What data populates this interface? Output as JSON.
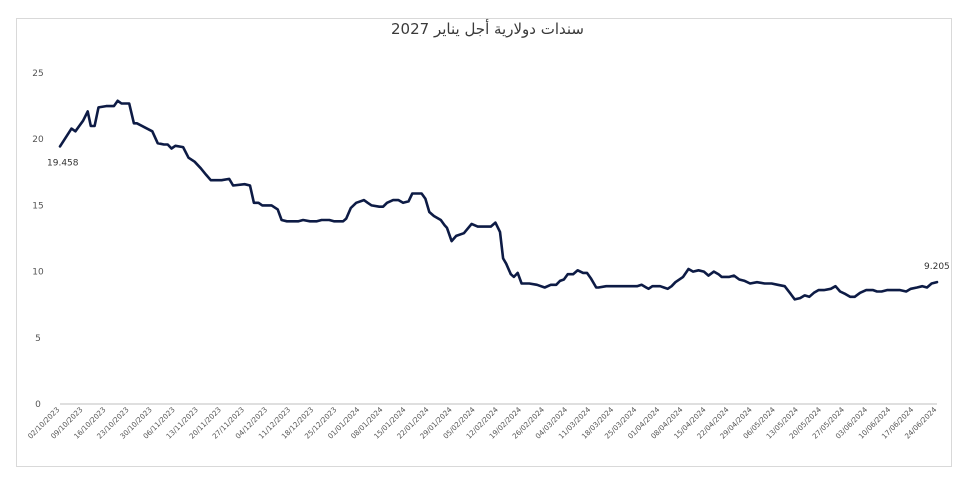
{
  "chart_data": {
    "type": "line",
    "title": "سندات دولارية أجل يناير 2027",
    "xlabel": "",
    "ylabel": "",
    "ylim": [
      0,
      25
    ],
    "yticks": [
      0,
      5,
      10,
      15,
      20,
      25
    ],
    "grid": false,
    "x_tick_labels": [
      "02/10/2023",
      "09/10/2023",
      "16/10/2023",
      "23/10/2023",
      "30/10/2023",
      "06/11/2023",
      "13/11/2023",
      "20/11/2023",
      "27/11/2023",
      "04/12/2023",
      "11/12/2023",
      "18/12/2023",
      "25/12/2023",
      "01/01/2024",
      "08/01/2024",
      "15/01/2024",
      "22/01/2024",
      "29/01/2024",
      "05/02/2024",
      "12/02/2024",
      "19/02/2024",
      "26/02/2024",
      "04/03/2024",
      "11/03/2024",
      "18/03/2024",
      "25/03/2024",
      "01/04/2024",
      "08/04/2024",
      "15/04/2024",
      "22/04/2024",
      "29/04/2024",
      "06/05/2024",
      "13/05/2024",
      "20/05/2024",
      "27/05/2024",
      "03/06/2024",
      "10/06/2024",
      "17/06/2024",
      "24/06/2024"
    ],
    "series": [
      {
        "values": [
          [
            0,
            19.458
          ],
          [
            1.5,
            20.8
          ],
          [
            2,
            20.6
          ],
          [
            3,
            21.4
          ],
          [
            3.6,
            22.1
          ],
          [
            4,
            21.0
          ],
          [
            4.5,
            21.0
          ],
          [
            5,
            22.4
          ],
          [
            6,
            22.5
          ],
          [
            7,
            22.5
          ],
          [
            7.5,
            22.9
          ],
          [
            8,
            22.7
          ],
          [
            9,
            22.7
          ],
          [
            9.6,
            21.2
          ],
          [
            10,
            21.2
          ],
          [
            11,
            20.9
          ],
          [
            12,
            20.6
          ],
          [
            12.7,
            19.7
          ],
          [
            13.5,
            19.6
          ],
          [
            14,
            19.6
          ],
          [
            14.5,
            19.3
          ],
          [
            15,
            19.5
          ],
          [
            16,
            19.4
          ],
          [
            16.7,
            18.6
          ],
          [
            17.5,
            18.3
          ],
          [
            18.3,
            17.8
          ],
          [
            19,
            17.3
          ],
          [
            19.6,
            16.9
          ],
          [
            21,
            16.9
          ],
          [
            22,
            17.0
          ],
          [
            22.5,
            16.5
          ],
          [
            24,
            16.6
          ],
          [
            24.7,
            16.5
          ],
          [
            25.2,
            15.2
          ],
          [
            25.8,
            15.2
          ],
          [
            26.3,
            15.0
          ],
          [
            27.5,
            15.0
          ],
          [
            28.3,
            14.7
          ],
          [
            28.8,
            13.9
          ],
          [
            29.5,
            13.8
          ],
          [
            31,
            13.8
          ],
          [
            31.6,
            13.9
          ],
          [
            32.5,
            13.8
          ],
          [
            33.4,
            13.8
          ],
          [
            34,
            13.9
          ],
          [
            35,
            13.9
          ],
          [
            35.6,
            13.8
          ],
          [
            36.8,
            13.8
          ],
          [
            37.2,
            14.0
          ],
          [
            37.8,
            14.8
          ],
          [
            38.5,
            15.2
          ],
          [
            39.5,
            15.4
          ],
          [
            40,
            15.2
          ],
          [
            40.5,
            15.0
          ],
          [
            41.5,
            14.9
          ],
          [
            42,
            14.9
          ],
          [
            42.5,
            15.2
          ],
          [
            43.3,
            15.4
          ],
          [
            44,
            15.4
          ],
          [
            44.6,
            15.2
          ],
          [
            45.3,
            15.3
          ],
          [
            45.8,
            15.9
          ],
          [
            47,
            15.9
          ],
          [
            47.5,
            15.5
          ],
          [
            48,
            14.5
          ],
          [
            48.6,
            14.2
          ],
          [
            49.5,
            13.9
          ],
          [
            50,
            13.5
          ],
          [
            50.3,
            13.3
          ],
          [
            50.9,
            12.3
          ],
          [
            51.5,
            12.7
          ],
          [
            52.5,
            12.9
          ],
          [
            53.5,
            13.6
          ],
          [
            54.3,
            13.4
          ],
          [
            55,
            13.4
          ],
          [
            56,
            13.4
          ],
          [
            56.6,
            13.7
          ],
          [
            57.2,
            13.0
          ],
          [
            57.6,
            11.0
          ],
          [
            58,
            10.6
          ],
          [
            58.6,
            9.8
          ],
          [
            59,
            9.6
          ],
          [
            59.5,
            9.9
          ],
          [
            60,
            9.1
          ],
          [
            61,
            9.1
          ],
          [
            62,
            9.0
          ],
          [
            63,
            8.8
          ],
          [
            63.8,
            9.0
          ],
          [
            64.5,
            9.0
          ],
          [
            65,
            9.3
          ],
          [
            65.5,
            9.4
          ],
          [
            66,
            9.8
          ],
          [
            66.7,
            9.8
          ],
          [
            67.3,
            10.1
          ],
          [
            68,
            9.9
          ],
          [
            68.5,
            9.9
          ],
          [
            69,
            9.5
          ],
          [
            69.7,
            8.8
          ],
          [
            70,
            8.8
          ],
          [
            71,
            8.9
          ],
          [
            72,
            8.9
          ],
          [
            73,
            8.9
          ],
          [
            74,
            8.9
          ],
          [
            75,
            8.9
          ],
          [
            75.6,
            9.0
          ],
          [
            76.2,
            8.8
          ],
          [
            76.5,
            8.7
          ],
          [
            77,
            8.9
          ],
          [
            78,
            8.9
          ],
          [
            78.5,
            8.8
          ],
          [
            79,
            8.7
          ],
          [
            79.5,
            8.9
          ],
          [
            80,
            9.2
          ],
          [
            81,
            9.6
          ],
          [
            81.7,
            10.2
          ],
          [
            82.3,
            10.0
          ],
          [
            83,
            10.1
          ],
          [
            83.7,
            10.0
          ],
          [
            84.3,
            9.7
          ],
          [
            85,
            10.0
          ],
          [
            85.6,
            9.8
          ],
          [
            86,
            9.6
          ],
          [
            87,
            9.6
          ],
          [
            87.6,
            9.7
          ],
          [
            88.3,
            9.4
          ],
          [
            89,
            9.3
          ],
          [
            89.7,
            9.1
          ],
          [
            90.6,
            9.2
          ],
          [
            91.6,
            9.1
          ],
          [
            92.5,
            9.1
          ],
          [
            93.3,
            9.0
          ],
          [
            94.2,
            8.9
          ],
          [
            95,
            8.3
          ],
          [
            95.5,
            7.9
          ],
          [
            96.2,
            8.0
          ],
          [
            96.8,
            8.2
          ],
          [
            97.4,
            8.1
          ],
          [
            98,
            8.4
          ],
          [
            98.6,
            8.6
          ],
          [
            99.3,
            8.6
          ],
          [
            100.2,
            8.7
          ],
          [
            100.8,
            8.9
          ],
          [
            101.4,
            8.5
          ],
          [
            102.1,
            8.3
          ],
          [
            102.7,
            8.1
          ],
          [
            103.3,
            8.1
          ],
          [
            104,
            8.4
          ],
          [
            104.8,
            8.6
          ],
          [
            105.7,
            8.6
          ],
          [
            106.2,
            8.5
          ],
          [
            106.8,
            8.5
          ],
          [
            107.5,
            8.6
          ],
          [
            108.3,
            8.6
          ],
          [
            109.2,
            8.6
          ],
          [
            110,
            8.5
          ],
          [
            110.6,
            8.7
          ],
          [
            111.4,
            8.8
          ],
          [
            112.1,
            8.9
          ],
          [
            112.7,
            8.8
          ],
          [
            113.3,
            9.1
          ],
          [
            114,
            9.205
          ]
        ]
      }
    ],
    "data_labels": [
      {
        "text": "19.458"
      },
      {
        "text": "9.205"
      }
    ],
    "legend": "none"
  }
}
